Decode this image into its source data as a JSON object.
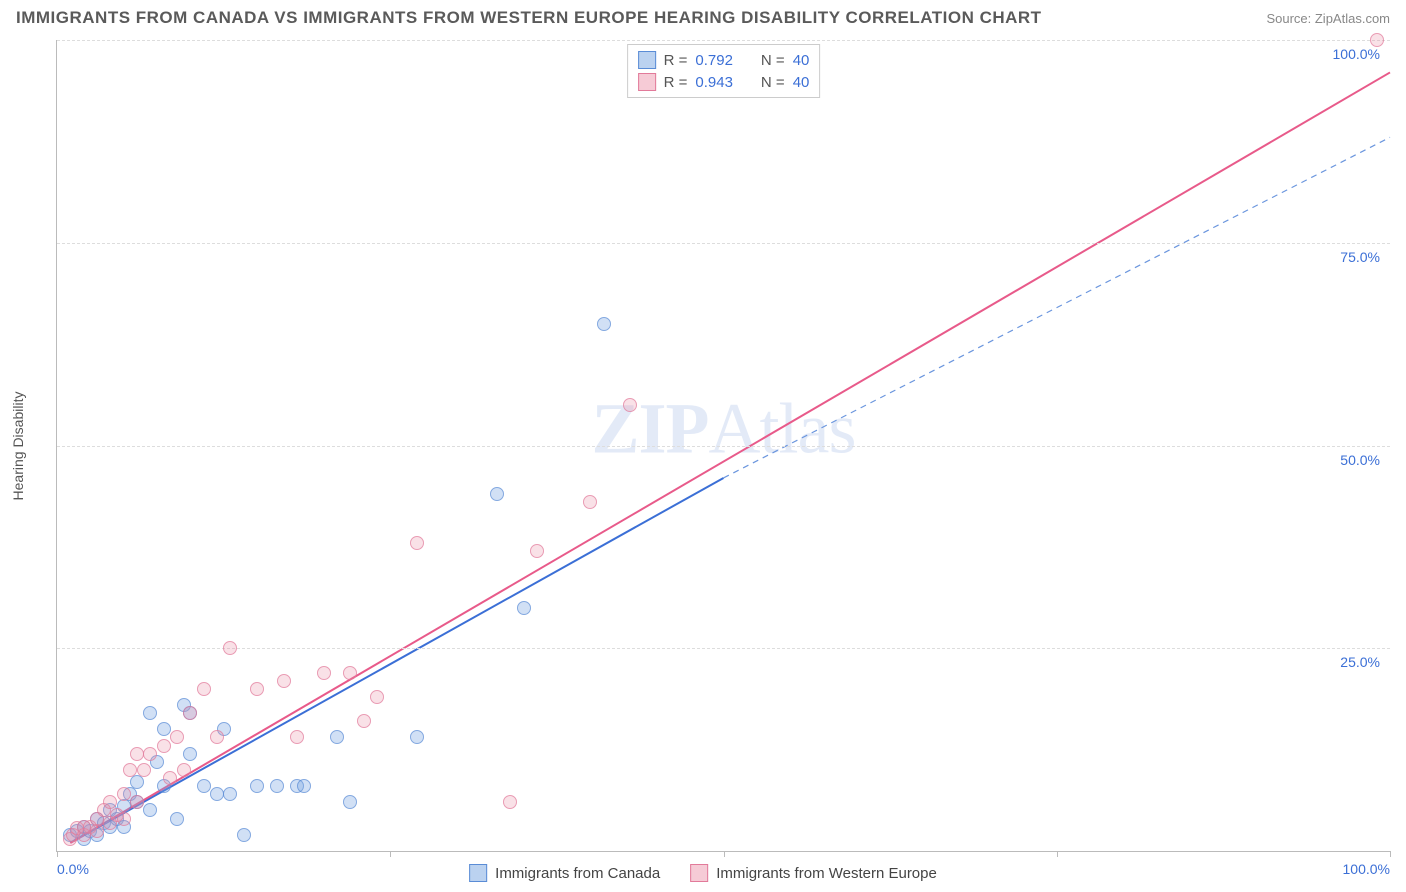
{
  "title": "IMMIGRANTS FROM CANADA VS IMMIGRANTS FROM WESTERN EUROPE HEARING DISABILITY CORRELATION CHART",
  "source": "Source: ZipAtlas.com",
  "ylabel": "Hearing Disability",
  "watermark_bold": "ZIP",
  "watermark_rest": "Atlas",
  "chart": {
    "type": "scatter",
    "xlim": [
      0,
      100
    ],
    "ylim": [
      0,
      100
    ],
    "yticks": [
      25,
      50,
      75,
      100
    ],
    "ytick_labels": [
      "25.0%",
      "50.0%",
      "75.0%",
      "100.0%"
    ],
    "xtick_labels": {
      "left": "0.0%",
      "right": "100.0%"
    },
    "x_tick_positions": [
      0,
      25,
      50,
      75,
      100
    ],
    "grid_color": "#dddddd",
    "background_color": "#ffffff",
    "marker_radius": 7
  },
  "series": [
    {
      "name": "Immigrants from Canada",
      "key": "blue",
      "color_fill": "rgba(120,165,225,0.45)",
      "color_stroke": "#5a8cd6",
      "R": "0.792",
      "N": "40",
      "trend": {
        "x1": 1,
        "y1": 1,
        "x2": 50,
        "y2": 46,
        "stroke": "#3b6fd6",
        "width": 2,
        "dash": "none"
      },
      "trend_ext": {
        "x1": 50,
        "y1": 46,
        "x2": 100,
        "y2": 88,
        "stroke": "#6b96de",
        "width": 1.2,
        "dash": "6,5"
      },
      "points": [
        [
          1,
          2
        ],
        [
          1.5,
          2.5
        ],
        [
          2,
          3
        ],
        [
          2,
          1.5
        ],
        [
          2.5,
          2.5
        ],
        [
          3,
          2
        ],
        [
          3,
          4
        ],
        [
          3.5,
          3.5
        ],
        [
          4,
          3
        ],
        [
          4,
          5
        ],
        [
          4.5,
          4
        ],
        [
          5,
          5.5
        ],
        [
          5,
          3
        ],
        [
          5.5,
          7
        ],
        [
          6,
          6
        ],
        [
          6,
          8.5
        ],
        [
          7,
          17
        ],
        [
          7,
          5
        ],
        [
          7.5,
          11
        ],
        [
          8,
          15
        ],
        [
          8,
          8
        ],
        [
          9,
          4
        ],
        [
          9.5,
          18
        ],
        [
          10,
          12
        ],
        [
          10,
          17
        ],
        [
          11,
          8
        ],
        [
          12,
          7
        ],
        [
          12.5,
          15
        ],
        [
          13,
          7
        ],
        [
          14,
          2
        ],
        [
          15,
          8
        ],
        [
          16.5,
          8
        ],
        [
          18,
          8
        ],
        [
          18.5,
          8
        ],
        [
          21,
          14
        ],
        [
          22,
          6
        ],
        [
          27,
          14
        ],
        [
          33,
          44
        ],
        [
          35,
          30
        ],
        [
          41,
          65
        ]
      ]
    },
    {
      "name": "Immigrants from Western Europe",
      "key": "pink",
      "color_fill": "rgba(235,140,165,0.35)",
      "color_stroke": "#e27a9a",
      "R": "0.943",
      "N": "40",
      "trend": {
        "x1": 1,
        "y1": 1,
        "x2": 100,
        "y2": 96,
        "stroke": "#e85a8a",
        "width": 2,
        "dash": "none"
      },
      "points": [
        [
          1,
          1.5
        ],
        [
          1.2,
          2
        ],
        [
          1.5,
          2.8
        ],
        [
          2,
          2
        ],
        [
          2,
          3
        ],
        [
          2.5,
          3
        ],
        [
          3,
          4
        ],
        [
          3,
          2.5
        ],
        [
          3.5,
          5
        ],
        [
          4,
          3.5
        ],
        [
          4,
          6
        ],
        [
          4.5,
          4.5
        ],
        [
          5,
          4
        ],
        [
          5,
          7
        ],
        [
          5.5,
          10
        ],
        [
          6,
          12
        ],
        [
          6,
          6
        ],
        [
          6.5,
          10
        ],
        [
          7,
          12
        ],
        [
          8,
          13
        ],
        [
          8.5,
          9
        ],
        [
          9,
          14
        ],
        [
          9.5,
          10
        ],
        [
          10,
          17
        ],
        [
          11,
          20
        ],
        [
          12,
          14
        ],
        [
          13,
          25
        ],
        [
          15,
          20
        ],
        [
          17,
          21
        ],
        [
          18,
          14
        ],
        [
          20,
          22
        ],
        [
          22,
          22
        ],
        [
          23,
          16
        ],
        [
          24,
          19
        ],
        [
          27,
          38
        ],
        [
          34,
          6
        ],
        [
          36,
          37
        ],
        [
          40,
          43
        ],
        [
          43,
          55
        ],
        [
          99,
          100
        ]
      ]
    }
  ],
  "top_legend": {
    "R_label": "R =",
    "N_label": "N ="
  },
  "bottom_legend": [
    {
      "swatch": "blue",
      "label": "Immigrants from Canada"
    },
    {
      "swatch": "pink",
      "label": "Immigrants from Western Europe"
    }
  ]
}
